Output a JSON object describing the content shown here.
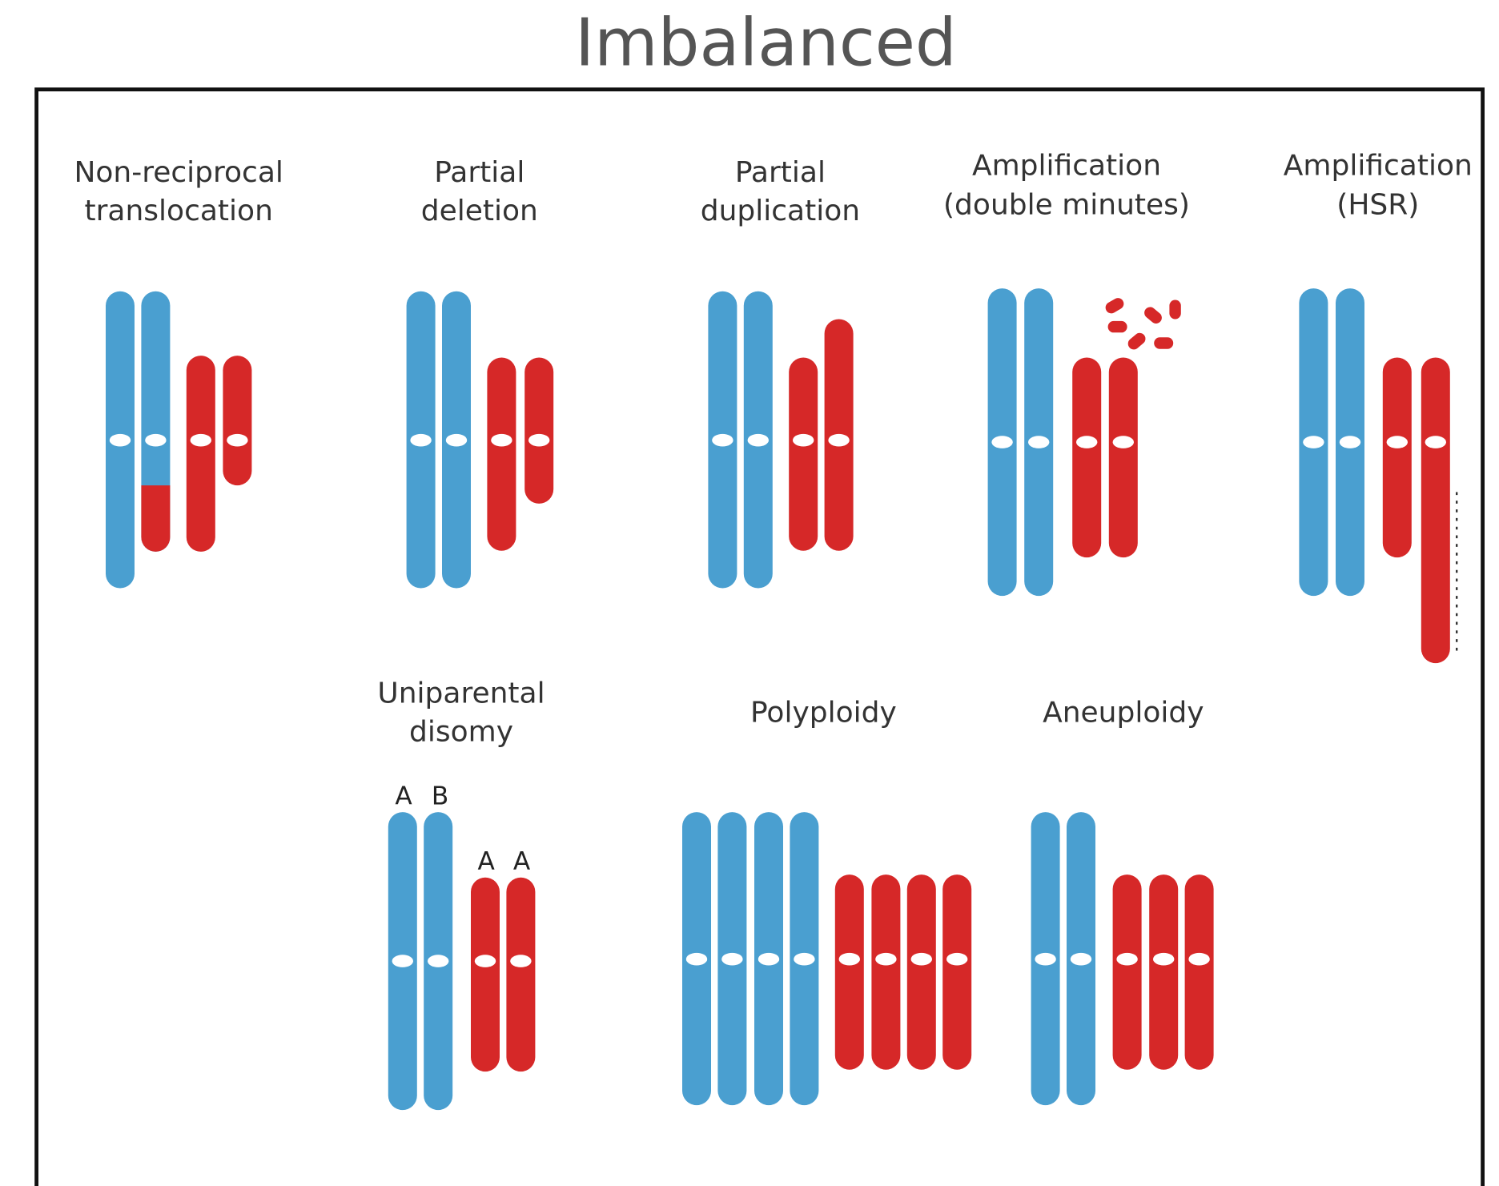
{
  "title": "Imbalanced",
  "panels": [
    {
      "label": [
        "Non-reciprocal",
        "translocation"
      ]
    },
    {
      "label": [
        "Partial",
        "deletion"
      ]
    },
    {
      "label": [
        "Partial",
        "duplication"
      ]
    },
    {
      "label": [
        "Amplification",
        "(double minutes)"
      ]
    },
    {
      "label": [
        "Amplification",
        "(HSR)"
      ]
    },
    {
      "label": [
        "Uniparental",
        "disomy"
      ],
      "alleles": {
        "blue": [
          "A",
          "B"
        ],
        "red": [
          "A",
          "A"
        ]
      }
    },
    {
      "label": [
        "Polyploidy"
      ]
    },
    {
      "label": [
        "Aneuploidy"
      ]
    }
  ]
}
